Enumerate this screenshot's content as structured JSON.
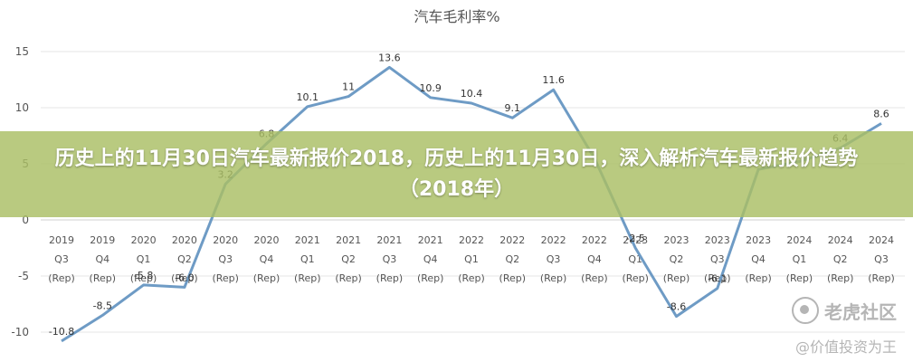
{
  "banner": {
    "line": "历史上的11月30日汽车最新报价2018，历史上的11月30日，深入解析汽车最新报价趋势（2018年）"
  },
  "watermarks": {
    "primary": "老虎社区",
    "secondary": "@价值投资为王"
  },
  "chart_data": {
    "type": "line",
    "title": "汽车毛利率%",
    "categories": [
      [
        "2019",
        "Q3",
        "(Rep)"
      ],
      [
        "2019",
        "Q4",
        "(Rep)"
      ],
      [
        "2020",
        "Q1",
        "(Rep)"
      ],
      [
        "2020",
        "Q2",
        "(Rep)"
      ],
      [
        "2020",
        "Q3",
        "(Rep)"
      ],
      [
        "2020",
        "Q4",
        "(Rep)"
      ],
      [
        "2021",
        "Q1",
        "(Rep)"
      ],
      [
        "2021",
        "Q2",
        "(Rep)"
      ],
      [
        "2021",
        "Q3",
        "(Rep)"
      ],
      [
        "2021",
        "Q4",
        "(Rep)"
      ],
      [
        "2022",
        "Q1",
        "(Rep)"
      ],
      [
        "2022",
        "Q2",
        "(Rep)"
      ],
      [
        "2022",
        "Q3",
        "(Rep)"
      ],
      [
        "2022",
        "Q4",
        "(Rep)"
      ],
      [
        "2023",
        "Q1",
        "(Rep)"
      ],
      [
        "2023",
        "Q2",
        "(Rep)"
      ],
      [
        "2023",
        "Q3",
        "(Rep)"
      ],
      [
        "2023",
        "Q4",
        "(Rep)"
      ],
      [
        "2024",
        "Q1",
        "(Rep)"
      ],
      [
        "2024",
        "Q2",
        "(Rep)"
      ],
      [
        "2024",
        "Q3",
        "(Rep)"
      ]
    ],
    "series": [
      {
        "values": [
          -10.8,
          -8.5,
          -5.8,
          -6.0,
          3.2,
          6.8,
          10.1,
          11,
          13.6,
          10.9,
          10.4,
          9.1,
          11.6,
          5.5,
          -2.5,
          -8.6,
          -6.1,
          4.5,
          5.2,
          6.4,
          8.6
        ],
        "labels": [
          "-10.8",
          "-8.5",
          "-5.8",
          "-6.0",
          "3.2",
          "6.8",
          "10.1",
          "11",
          "13.6",
          "10.9",
          "10.4",
          "9.1",
          "11.6",
          "",
          "-2.5",
          "-8.6",
          "-6.1",
          "",
          "",
          "6.4",
          "8.6"
        ],
        "color": "#6e9bc5"
      }
    ],
    "yticks": [
      -10,
      -5,
      0,
      5,
      10,
      15
    ],
    "ylim": [
      -11,
      16
    ],
    "grid": true
  }
}
